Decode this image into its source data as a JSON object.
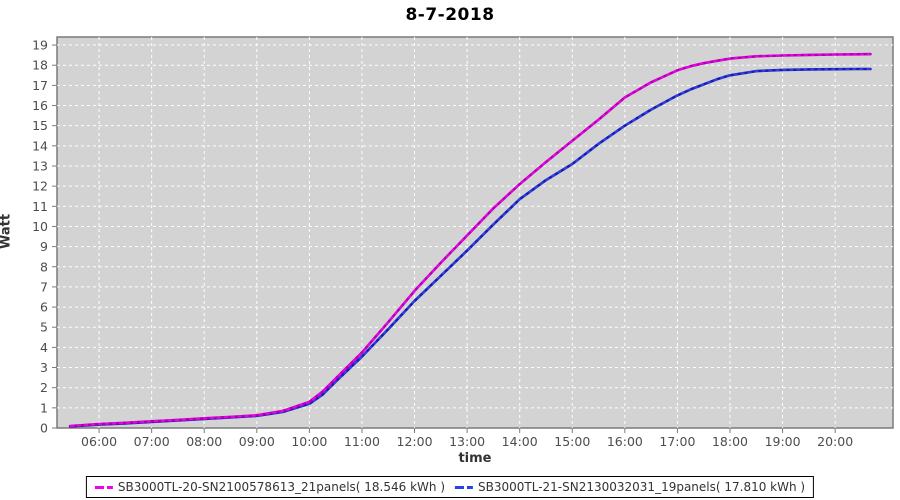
{
  "title": "8-7-2018",
  "chart_data": {
    "type": "line",
    "title": "8-7-2018",
    "xlabel": "time",
    "ylabel": "Watt",
    "x_unit": "hour_of_day",
    "xlim": [
      5.2,
      21.1
    ],
    "ylim": [
      0,
      19.4
    ],
    "grid": "white dashed on light-gray plot background",
    "legend_position": "bottom-center",
    "plot_bg_color": "#d3d3d3",
    "grid_color": "#ffffff",
    "axis_color": "#7a7a7a",
    "tick_label_color": "#4d4d4d",
    "x_ticks": [
      {
        "h": 6,
        "label": "06:00"
      },
      {
        "h": 7,
        "label": "07:00"
      },
      {
        "h": 8,
        "label": "08:00"
      },
      {
        "h": 9,
        "label": "09:00"
      },
      {
        "h": 10,
        "label": "10:00"
      },
      {
        "h": 11,
        "label": "11:00"
      },
      {
        "h": 12,
        "label": "12:00"
      },
      {
        "h": 13,
        "label": "13:00"
      },
      {
        "h": 14,
        "label": "14:00"
      },
      {
        "h": 15,
        "label": "15:00"
      },
      {
        "h": 16,
        "label": "16:00"
      },
      {
        "h": 17,
        "label": "17:00"
      },
      {
        "h": 18,
        "label": "18:00"
      },
      {
        "h": 19,
        "label": "19:00"
      },
      {
        "h": 20,
        "label": "20:00"
      }
    ],
    "y_ticks": [
      0,
      1,
      2,
      3,
      4,
      5,
      6,
      7,
      8,
      9,
      10,
      11,
      12,
      13,
      14,
      15,
      16,
      17,
      18,
      19
    ],
    "series": [
      {
        "name": "SB3000TL-20-SN2100578613_21panels( 18.546 kWh )",
        "total_kwh": "18.546",
        "color_line": "#b000b0",
        "color_dash": "#ee00ee",
        "x": [
          5.45,
          6,
          6.5,
          7,
          7.5,
          8,
          8.5,
          9,
          9.2,
          9.5,
          10,
          10.25,
          10.5,
          11,
          11.5,
          12,
          12.5,
          13,
          13.5,
          14,
          14.5,
          15,
          15.5,
          16,
          16.5,
          17,
          17.25,
          17.5,
          17.75,
          18,
          18.5,
          19,
          19.5,
          20,
          20.4,
          20.67
        ],
        "y": [
          0.1,
          0.2,
          0.26,
          0.33,
          0.4,
          0.48,
          0.55,
          0.63,
          0.72,
          0.85,
          1.3,
          1.8,
          2.45,
          3.75,
          5.25,
          6.8,
          8.2,
          9.55,
          10.9,
          12.1,
          13.2,
          14.25,
          15.3,
          16.4,
          17.15,
          17.75,
          17.95,
          18.1,
          18.22,
          18.33,
          18.44,
          18.48,
          18.51,
          18.53,
          18.54,
          18.55
        ]
      },
      {
        "name": "SB3000TL-21-SN2130032031_19panels( 17.810 kWh )",
        "total_kwh": "17.810",
        "color_line": "#1a1aae",
        "color_dash": "#2a43e8",
        "x": [
          5.45,
          6,
          6.5,
          7,
          7.5,
          8,
          8.5,
          9,
          9.2,
          9.5,
          10,
          10.25,
          10.5,
          11,
          11.5,
          12,
          12.5,
          13,
          13.5,
          14,
          14.5,
          15,
          15.5,
          16,
          16.5,
          17,
          17.25,
          17.5,
          17.75,
          18,
          18.5,
          19,
          19.5,
          20,
          20.4,
          20.67
        ],
        "y": [
          0.08,
          0.17,
          0.23,
          0.3,
          0.37,
          0.45,
          0.52,
          0.6,
          0.68,
          0.8,
          1.2,
          1.65,
          2.3,
          3.55,
          4.9,
          6.3,
          7.55,
          8.8,
          10.1,
          11.35,
          12.3,
          13.1,
          14.1,
          15.0,
          15.8,
          16.5,
          16.8,
          17.05,
          17.3,
          17.5,
          17.71,
          17.77,
          17.79,
          17.8,
          17.81,
          17.81
        ]
      }
    ]
  },
  "legend": {
    "items": [
      {
        "label": "SB3000TL-20-SN2100578613_21panels( 18.546 kWh )"
      },
      {
        "label": "SB3000TL-21-SN2130032031_19panels( 17.810 kWh )"
      }
    ]
  }
}
